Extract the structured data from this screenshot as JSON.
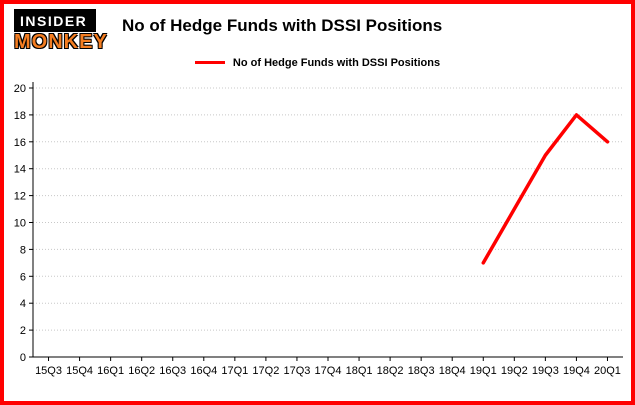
{
  "logo": {
    "line1": "INSIDER",
    "line2": "MONKEY"
  },
  "chart_data": {
    "type": "line",
    "title": "No of Hedge Funds with DSSI Positions",
    "categories": [
      "15Q3",
      "15Q4",
      "16Q1",
      "16Q2",
      "16Q3",
      "16Q4",
      "17Q1",
      "17Q2",
      "17Q3",
      "17Q4",
      "18Q1",
      "18Q2",
      "18Q3",
      "18Q4",
      "19Q1",
      "19Q2",
      "19Q3",
      "19Q4",
      "20Q1"
    ],
    "series": [
      {
        "name": "No of Hedge Funds with DSSI Positions",
        "color": "#ff0000",
        "values": [
          null,
          null,
          null,
          null,
          null,
          null,
          null,
          null,
          null,
          null,
          null,
          null,
          null,
          null,
          7,
          11,
          15,
          18,
          16
        ]
      }
    ],
    "xlabel": "",
    "ylabel": "",
    "ylim": [
      0,
      20
    ],
    "yticks": [
      0,
      2,
      4,
      6,
      8,
      10,
      12,
      14,
      16,
      18,
      20
    ],
    "grid": true,
    "legend_position": "top-center",
    "colors": {
      "line": "#ff0000",
      "grid": "#c8c8c8",
      "axis": "#000000",
      "frame_border": "#ff0000"
    }
  }
}
